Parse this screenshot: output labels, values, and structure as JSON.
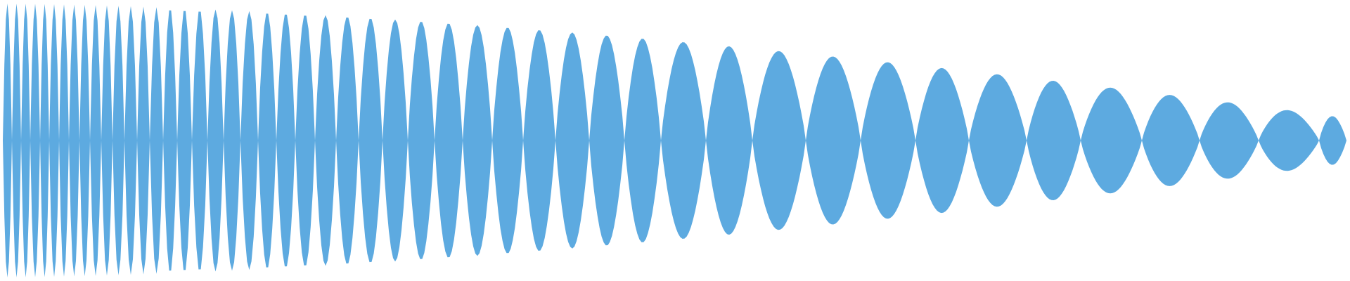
{
  "waveform": {
    "color": "#5DAAE0",
    "background": "#FFFFFF",
    "shape": "chirp-envelope",
    "frequency_sweep": "high-to-low",
    "amplitude_trend": "decreasing"
  }
}
